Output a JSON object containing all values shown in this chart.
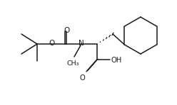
{
  "bg_color": "#ffffff",
  "line_color": "#1a1a1a",
  "lw": 1.1,
  "fs": 7.5,
  "figsize": [
    2.48,
    1.48
  ],
  "dpi": 100,
  "xlim": [
    0,
    248
  ],
  "ylim": [
    0,
    148
  ]
}
